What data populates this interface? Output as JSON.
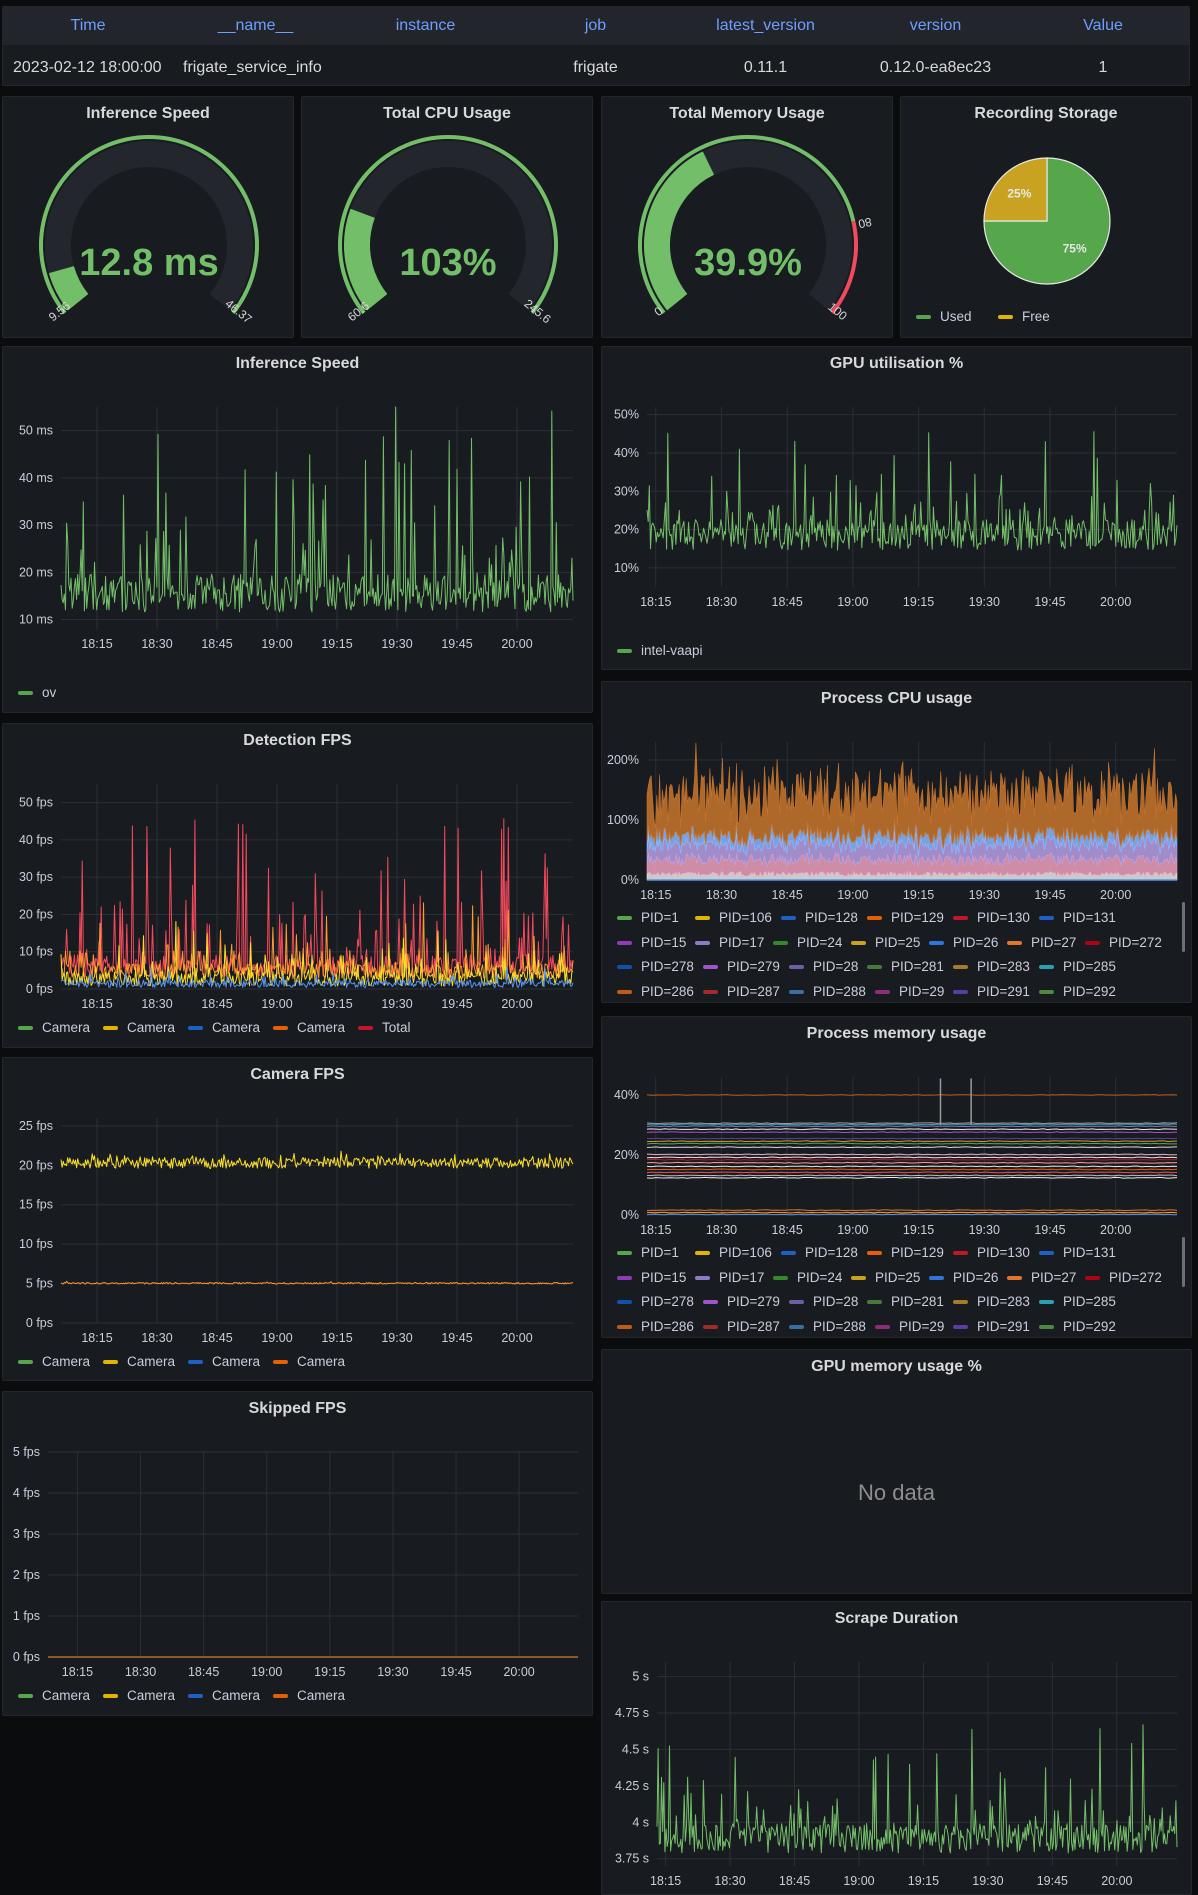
{
  "info_table": {
    "headers": [
      "Time",
      "__name__",
      "instance",
      "job",
      "latest_version",
      "version",
      "Value"
    ],
    "row": [
      "2023-02-12 18:00:00",
      "frigate_service_info",
      "",
      "frigate",
      "0.11.1",
      "0.12.0-ea8ec23",
      "1"
    ]
  },
  "gauges": [
    {
      "title": "Inference Speed",
      "value": "12.8 ms",
      "min_label": "9.56",
      "max_label": "46.37",
      "fill": 0.09,
      "color": "#73bf69"
    },
    {
      "title": "Total CPU Usage",
      "value": "103%",
      "min_label": "60.6",
      "max_label": "245.6",
      "fill": 0.23,
      "color": "#73bf69"
    },
    {
      "title": "Total Memory Usage",
      "value": "39.9%",
      "min_label": "0",
      "max_label": "100",
      "threshold_label": "80",
      "fill": 0.4,
      "threshold": 0.8,
      "color": "#73bf69",
      "threshold_color": "#f2495c"
    }
  ],
  "storage_pie": {
    "title": "Recording Storage",
    "chart_data": {
      "type": "pie",
      "slices": [
        {
          "label": "Used",
          "percent": 75,
          "color": "#56a64b"
        },
        {
          "label": "Free",
          "percent": 25,
          "color": "#c8a220"
        }
      ]
    },
    "labels": [
      "75%",
      "25%"
    ],
    "legend": [
      "Used",
      "Free"
    ]
  },
  "x_ticks": [
    "18:15",
    "18:30",
    "18:45",
    "19:00",
    "19:15",
    "19:30",
    "19:45",
    "20:00"
  ],
  "inference_chart": {
    "title": "Inference Speed",
    "legend": [
      "ov"
    ],
    "chart_data": {
      "type": "line",
      "x_range": [
        "18:06",
        "20:14"
      ],
      "ylim": [
        8,
        55
      ],
      "y_ticks": [
        10,
        20,
        30,
        40,
        50
      ],
      "y_tick_labels": [
        "10 ms",
        "20 ms",
        "30 ms",
        "40 ms",
        "50 ms"
      ],
      "series": [
        {
          "name": "ov",
          "color": "#73bf69",
          "baseline": 14,
          "noise": 4,
          "spike_max": 40,
          "spike_prob": 0.06
        }
      ]
    }
  },
  "gpu_chart": {
    "title": "GPU utilisation %",
    "legend": [
      "intel-vaapi"
    ],
    "chart_data": {
      "type": "line",
      "x_range": [
        "18:13",
        "20:14"
      ],
      "ylim": [
        5,
        52
      ],
      "y_ticks": [
        10,
        20,
        30,
        40,
        50
      ],
      "y_tick_labels": [
        "10%",
        "20%",
        "30%",
        "40%",
        "50%"
      ],
      "series": [
        {
          "name": "intel-vaapi",
          "color": "#73bf69",
          "baseline": 17,
          "noise": 4,
          "spike_max": 27,
          "spike_prob": 0.07
        }
      ]
    }
  },
  "detection_chart": {
    "title": "Detection FPS",
    "legend": [
      "Camera",
      "Camera",
      "Camera",
      "Camera",
      "Total"
    ],
    "legend_colors": [
      "#56a64b",
      "#e0b400",
      "#1f60c4",
      "#e55f06",
      "#c4162a"
    ],
    "chart_data": {
      "type": "line",
      "x_range": [
        "18:06",
        "20:14"
      ],
      "ylim": [
        0,
        55
      ],
      "y_ticks": [
        0,
        10,
        20,
        30,
        40,
        50
      ],
      "y_tick_labels": [
        "0 fps",
        "10 fps",
        "20 fps",
        "30 fps",
        "40 fps",
        "50 fps"
      ],
      "series": [
        {
          "name": "Total",
          "color": "#f2495c",
          "baseline": 5,
          "noise": 3,
          "spike_max": 40,
          "spike_prob": 0.09
        },
        {
          "name": "Camera",
          "color": "#ff9830",
          "baseline": 4,
          "noise": 2,
          "spike_max": 18,
          "spike_prob": 0.07
        },
        {
          "name": "Camera",
          "color": "#fade2a",
          "baseline": 2,
          "noise": 2,
          "spike_max": 16,
          "spike_prob": 0.06
        },
        {
          "name": "Camera",
          "color": "#5794f2",
          "baseline": 1,
          "noise": 1,
          "spike_max": 5,
          "spike_prob": 0.05
        }
      ]
    }
  },
  "cpu_chart": {
    "title": "Process CPU usage",
    "chart_data": {
      "type": "line",
      "x_range": [
        "18:13",
        "20:14"
      ],
      "ylim": [
        0,
        230
      ],
      "y_ticks": [
        0,
        100,
        200
      ],
      "y_tick_labels": [
        "0%",
        "100%",
        "200%"
      ]
    }
  },
  "mem_chart": {
    "title": "Process memory usage",
    "chart_data": {
      "type": "line",
      "x_range": [
        "18:13",
        "20:14"
      ],
      "ylim": [
        0,
        46
      ],
      "y_ticks": [
        0,
        20,
        40
      ],
      "y_tick_labels": [
        "0%",
        "20%",
        "40%"
      ]
    }
  },
  "pid_legend": {
    "rows": [
      [
        {
          "label": "PID=1",
          "color": "#56a64b"
        },
        {
          "label": "PID=106",
          "color": "#e0b400"
        },
        {
          "label": "PID=128",
          "color": "#1f60c4"
        },
        {
          "label": "PID=129",
          "color": "#e55f06"
        },
        {
          "label": "PID=130",
          "color": "#c4162a"
        },
        {
          "label": "PID=131",
          "color": "#1f60c4"
        }
      ],
      [
        {
          "label": "PID=15",
          "color": "#8f3bb8"
        },
        {
          "label": "PID=17",
          "color": "#8e7cc3"
        },
        {
          "label": "PID=24",
          "color": "#37872d"
        },
        {
          "label": "PID=25",
          "color": "#c8a220"
        },
        {
          "label": "PID=26",
          "color": "#3274d9"
        },
        {
          "label": "PID=27",
          "color": "#e0752d"
        },
        {
          "label": "PID=272",
          "color": "#ad0317"
        }
      ],
      [
        {
          "label": "PID=278",
          "color": "#1250b0"
        },
        {
          "label": "PID=279",
          "color": "#a352cc"
        },
        {
          "label": "PID=28",
          "color": "#6d5fa6"
        },
        {
          "label": "PID=281",
          "color": "#447a3b"
        },
        {
          "label": "PID=283",
          "color": "#a57b26"
        },
        {
          "label": "PID=285",
          "color": "#2b9fb3"
        }
      ],
      [
        {
          "label": "PID=286",
          "color": "#c15c17"
        },
        {
          "label": "PID=287",
          "color": "#a12a2a"
        },
        {
          "label": "PID=288",
          "color": "#3a6ea5"
        },
        {
          "label": "PID=29",
          "color": "#8c2d7a"
        },
        {
          "label": "PID=291",
          "color": "#5a3ea3"
        },
        {
          "label": "PID=292",
          "color": "#508642"
        }
      ]
    ]
  },
  "camera_fps_chart": {
    "title": "Camera FPS",
    "legend": [
      "Camera",
      "Camera",
      "Camera",
      "Camera"
    ],
    "legend_colors": [
      "#56a64b",
      "#e0b400",
      "#1f60c4",
      "#e55f06"
    ],
    "chart_data": {
      "type": "line",
      "x_range": [
        "18:06",
        "20:14"
      ],
      "ylim": [
        0,
        26
      ],
      "y_ticks": [
        0,
        5,
        10,
        15,
        20,
        25
      ],
      "y_tick_labels": [
        "0 fps",
        "5 fps",
        "10 fps",
        "15 fps",
        "20 fps",
        "25 fps"
      ],
      "series": [
        {
          "name": "Camera",
          "color": "#fade2a",
          "baseline": 20,
          "noise": 0.7,
          "spike_max": 1.5,
          "spike_prob": 0.05
        },
        {
          "name": "Camera",
          "color": "#ff9830",
          "baseline": 5,
          "noise": 0.1,
          "spike_max": 0.2,
          "spike_prob": 0.02
        }
      ]
    }
  },
  "gpu_mem_panel": {
    "title": "GPU memory usage %",
    "no_data": "No data"
  },
  "skipped_chart": {
    "title": "Skipped FPS",
    "legend": [
      "Camera",
      "Camera",
      "Camera",
      "Camera"
    ],
    "legend_colors": [
      "#56a64b",
      "#e0b400",
      "#1f60c4",
      "#e55f06"
    ],
    "chart_data": {
      "type": "line",
      "x_range": [
        "18:08",
        "20:14"
      ],
      "ylim": [
        0,
        5
      ],
      "y_ticks": [
        0,
        1,
        2,
        3,
        4,
        5
      ],
      "y_tick_labels": [
        "0 fps",
        "1 fps",
        "2 fps",
        "3 fps",
        "4 fps",
        "5 fps"
      ],
      "series": [
        {
          "name": "Camera",
          "color": "#ff9830",
          "baseline": 0,
          "noise": 0,
          "spike_max": 0,
          "spike_prob": 0
        }
      ]
    }
  },
  "scrape_chart": {
    "title": "Scrape Duration",
    "chart_data": {
      "type": "line",
      "x_range": [
        "18:13",
        "20:14"
      ],
      "ylim": [
        3.7,
        5.1
      ],
      "y_ticks": [
        3.75,
        4,
        4.25,
        4.5,
        4.75,
        5
      ],
      "y_tick_labels": [
        "3.75 s",
        "4 s",
        "4.25 s",
        "4.5 s",
        "4.75 s",
        "5 s"
      ],
      "series": [
        {
          "name": "",
          "color": "#73bf69",
          "baseline": 3.85,
          "noise": 0.1,
          "spike_max": 0.7,
          "spike_prob": 0.08
        }
      ]
    }
  }
}
